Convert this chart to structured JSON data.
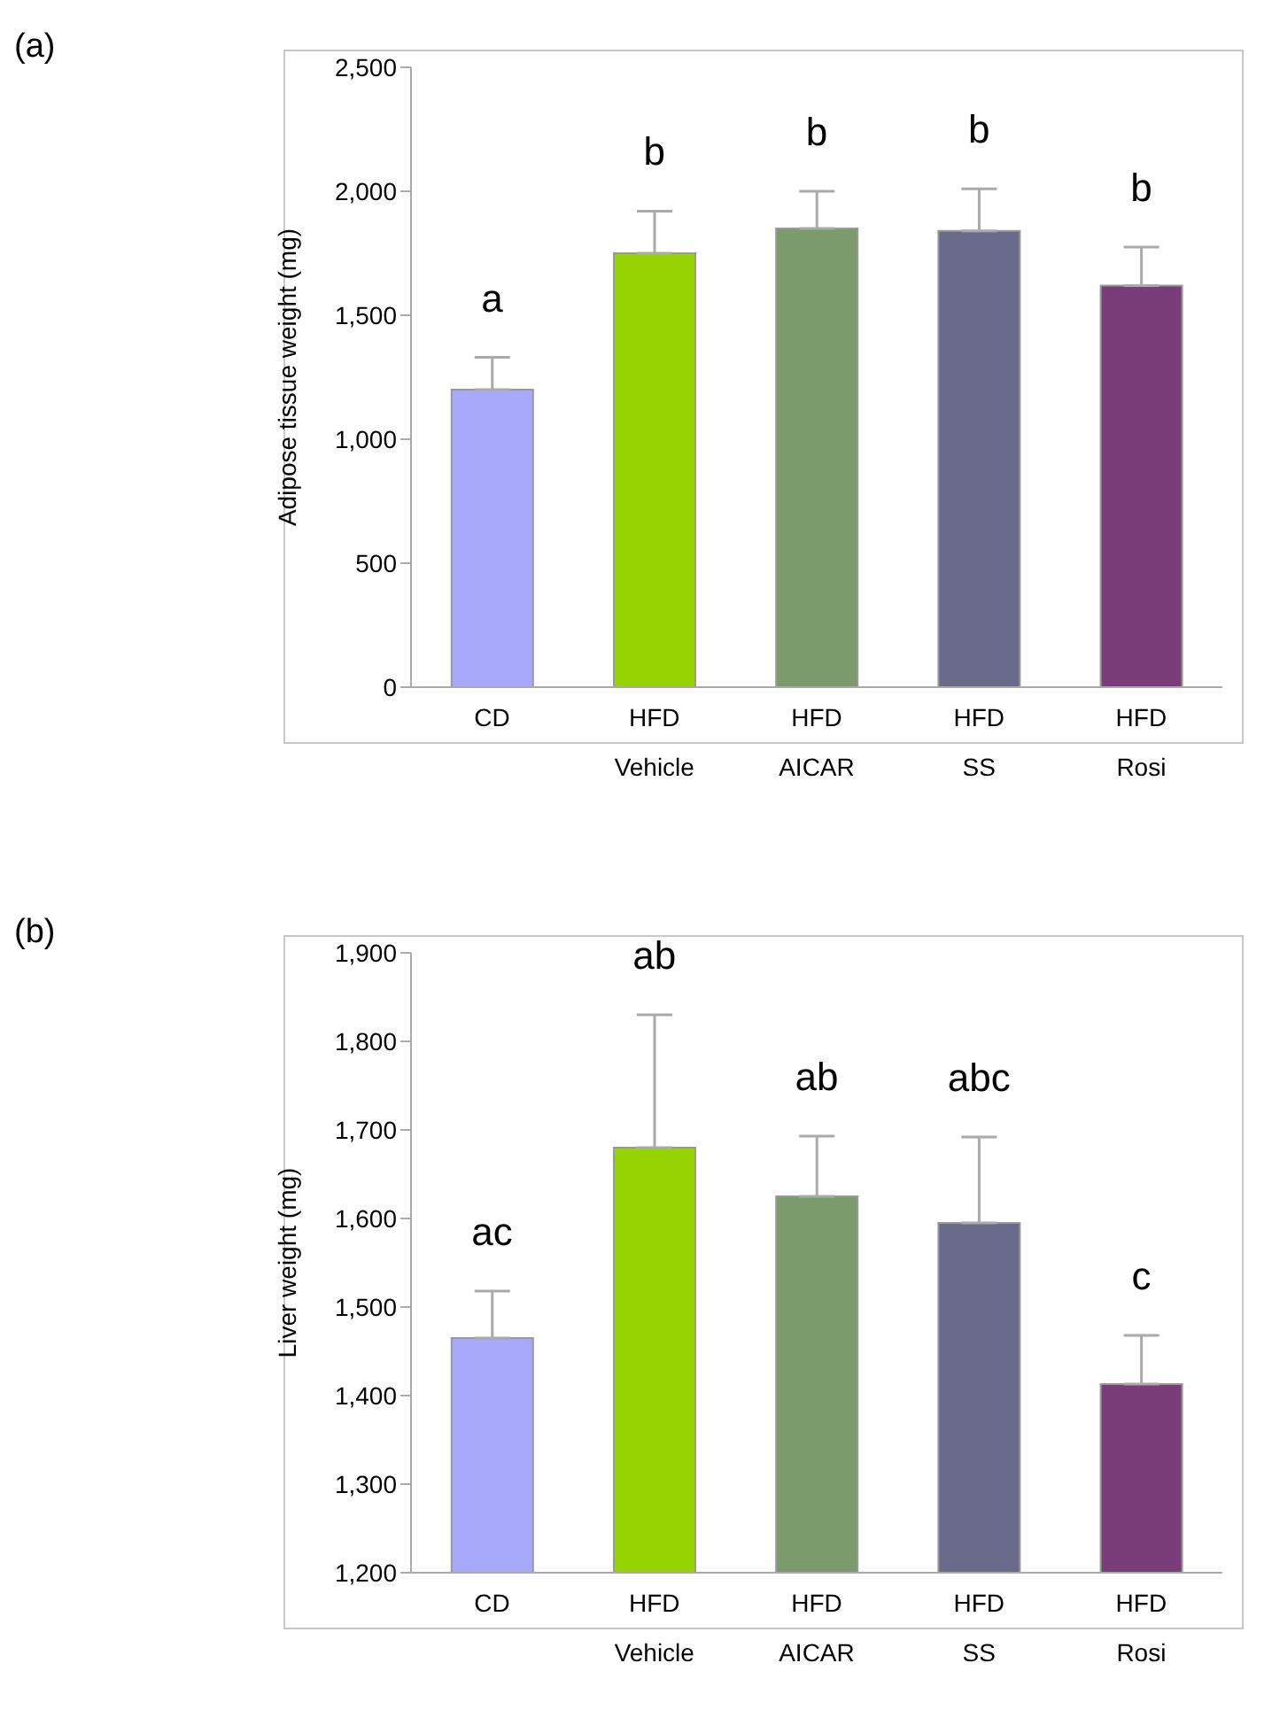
{
  "chart_data": [
    {
      "type": "bar",
      "ylabel": "Adipose tissue weight (mg)",
      "categories": [
        "CD",
        "HFD\nVehicle",
        "HFD\nAICAR",
        "HFD\nSS",
        "HFD\nRosi"
      ],
      "values": [
        1200,
        1750,
        1850,
        1840,
        1620
      ],
      "colors": [
        "#a8a8fb",
        "#96d400",
        "#7b9b6c",
        "#6a6a8a",
        "#7a3d7a"
      ],
      "errors": [
        [
          1200,
          1330
        ],
        [
          1750,
          1920
        ],
        [
          1850,
          2000
        ],
        [
          1840,
          2010
        ],
        [
          1620,
          1775
        ]
      ],
      "ylim": [
        0,
        2500
      ],
      "yticks": [
        0,
        500,
        {
          "value": 1000,
          "label": "1,000"
        },
        {
          "value": 1500,
          "label": "1,500"
        },
        {
          "value": 2000,
          "label": "2,000"
        },
        {
          "value": 2500,
          "label": "2,500"
        }
      ],
      "grid": false,
      "legend": false,
      "annotations": [
        "(a)",
        "a",
        "b",
        "b",
        "b",
        "b"
      ]
    },
    {
      "type": "bar",
      "ylabel": "Liver  weight (mg)",
      "categories": [
        "CD",
        "HFD\nVehicle",
        "HFD\nAICAR",
        "HFD\nSS",
        "HFD\nRosi"
      ],
      "values": [
        1465,
        1680,
        1625,
        1595,
        1413
      ],
      "colors": [
        "#a8a8fb",
        "#96d400",
        "#7b9b6c",
        "#6a6a8a",
        "#7a3d7a"
      ],
      "errors": [
        [
          1465,
          1518
        ],
        [
          1680,
          1830
        ],
        [
          1625,
          1693
        ],
        [
          1595,
          1692
        ],
        [
          1413,
          1468
        ]
      ],
      "ylim": [
        1200,
        1900
      ],
      "yticks": [
        {
          "value": 1200,
          "label": "1,200"
        },
        {
          "value": 1300,
          "label": "1,300"
        },
        {
          "value": 1400,
          "label": "1,400"
        },
        {
          "value": 1500,
          "label": "1,500"
        },
        {
          "value": 1600,
          "label": "1,600"
        },
        {
          "value": 1700,
          "label": "1,700"
        },
        {
          "value": 1800,
          "label": "1,800"
        },
        {
          "value": 1900,
          "label": "1,900"
        }
      ],
      "grid": false,
      "legend": false,
      "annotations": [
        "(b)",
        "ac",
        "ab",
        "ab",
        "abc",
        "c"
      ]
    }
  ]
}
